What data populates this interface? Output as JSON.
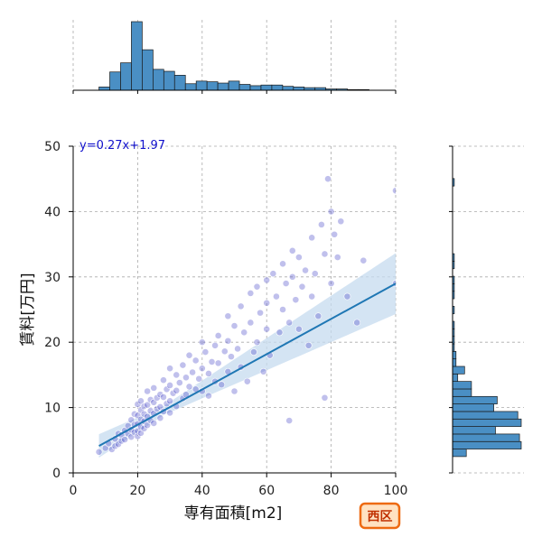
{
  "chart_data": {
    "type": "scatter",
    "xlabel": "専有面積[m2]",
    "ylabel": "賃料[万円]",
    "xlim": [
      0,
      100
    ],
    "ylim": [
      0,
      50
    ],
    "xticks": [
      0,
      20,
      40,
      60,
      80,
      100
    ],
    "yticks": [
      0,
      10,
      20,
      30,
      40,
      50
    ],
    "grid": true,
    "annotation": "y=0.27x+1.97",
    "badge": "西区",
    "regression": {
      "slope": 0.27,
      "intercept": 1.97,
      "x_range": [
        8,
        100
      ]
    },
    "colors": {
      "points": "#5a5acc",
      "line": "#1f77b4",
      "band": "#c6dbef",
      "hist": "#4a8fc4",
      "badge_fill": "#ffe2c2",
      "badge_border": "#ee6a12"
    },
    "series": [
      {
        "values": [
          [
            8,
            3.2
          ],
          [
            10,
            3.8
          ],
          [
            11,
            4.5
          ],
          [
            12,
            3.6
          ],
          [
            13,
            5.2
          ],
          [
            13,
            4.1
          ],
          [
            14,
            6.0
          ],
          [
            14,
            4.4
          ],
          [
            15,
            5.8
          ],
          [
            15,
            4.9
          ],
          [
            16,
            6.5
          ],
          [
            16,
            5.1
          ],
          [
            17,
            7.2
          ],
          [
            17,
            6.0
          ],
          [
            18,
            8.1
          ],
          [
            18,
            6.6
          ],
          [
            18,
            5.5
          ],
          [
            19,
            9.0
          ],
          [
            19,
            7.4
          ],
          [
            19,
            6.2
          ],
          [
            20,
            10.5
          ],
          [
            20,
            8.8
          ],
          [
            20,
            7.5
          ],
          [
            20,
            6.4
          ],
          [
            20,
            5.6
          ],
          [
            21,
            11.0
          ],
          [
            21,
            9.6
          ],
          [
            21,
            8.2
          ],
          [
            21,
            7.0
          ],
          [
            21,
            6.1
          ],
          [
            22,
            10.2
          ],
          [
            22,
            9.0
          ],
          [
            22,
            7.9
          ],
          [
            22,
            6.8
          ],
          [
            23,
            12.5
          ],
          [
            23,
            10.4
          ],
          [
            23,
            8.6
          ],
          [
            23,
            7.3
          ],
          [
            24,
            11.2
          ],
          [
            24,
            9.5
          ],
          [
            24,
            8.0
          ],
          [
            25,
            13.0
          ],
          [
            25,
            10.8
          ],
          [
            25,
            9.1
          ],
          [
            25,
            7.6
          ],
          [
            26,
            11.5
          ],
          [
            26,
            9.8
          ],
          [
            27,
            12.0
          ],
          [
            27,
            10.1
          ],
          [
            27,
            8.4
          ],
          [
            28,
            14.2
          ],
          [
            28,
            11.6
          ],
          [
            28,
            9.4
          ],
          [
            29,
            12.8
          ],
          [
            29,
            10.6
          ],
          [
            30,
            16.0
          ],
          [
            30,
            13.4
          ],
          [
            30,
            11.0
          ],
          [
            30,
            9.2
          ],
          [
            31,
            12.2
          ],
          [
            32,
            15.0
          ],
          [
            32,
            12.6
          ],
          [
            32,
            10.2
          ],
          [
            33,
            13.8
          ],
          [
            34,
            16.5
          ],
          [
            34,
            11.4
          ],
          [
            35,
            14.6
          ],
          [
            35,
            12.0
          ],
          [
            36,
            18.0
          ],
          [
            36,
            13.2
          ],
          [
            37,
            15.4
          ],
          [
            38,
            17.2
          ],
          [
            38,
            12.8
          ],
          [
            39,
            14.4
          ],
          [
            40,
            20.0
          ],
          [
            40,
            16.0
          ],
          [
            40,
            12.5
          ],
          [
            41,
            18.5
          ],
          [
            42,
            15.2
          ],
          [
            42,
            11.8
          ],
          [
            43,
            17.0
          ],
          [
            44,
            19.5
          ],
          [
            44,
            14.0
          ],
          [
            45,
            21.0
          ],
          [
            45,
            16.8
          ],
          [
            46,
            13.5
          ],
          [
            47,
            18.6
          ],
          [
            48,
            24.0
          ],
          [
            48,
            20.2
          ],
          [
            48,
            15.5
          ],
          [
            49,
            17.8
          ],
          [
            50,
            22.5
          ],
          [
            50,
            12.5
          ],
          [
            51,
            19.0
          ],
          [
            52,
            25.5
          ],
          [
            52,
            16.2
          ],
          [
            53,
            21.5
          ],
          [
            54,
            14.0
          ],
          [
            55,
            27.5
          ],
          [
            55,
            23.0
          ],
          [
            56,
            18.5
          ],
          [
            57,
            28.5
          ],
          [
            57,
            20.0
          ],
          [
            58,
            24.5
          ],
          [
            59,
            15.5
          ],
          [
            60,
            29.5
          ],
          [
            60,
            26.0
          ],
          [
            60,
            22.0
          ],
          [
            61,
            18.0
          ],
          [
            62,
            30.5
          ],
          [
            63,
            27.0
          ],
          [
            64,
            21.5
          ],
          [
            65,
            32.0
          ],
          [
            65,
            25.0
          ],
          [
            66,
            29.0
          ],
          [
            67,
            8.0
          ],
          [
            67,
            23.0
          ],
          [
            68,
            34.0
          ],
          [
            68,
            30.0
          ],
          [
            69,
            26.5
          ],
          [
            70,
            33.0
          ],
          [
            70,
            22.0
          ],
          [
            71,
            28.5
          ],
          [
            72,
            31.0
          ],
          [
            73,
            19.5
          ],
          [
            74,
            36.0
          ],
          [
            74,
            27.0
          ],
          [
            75,
            30.5
          ],
          [
            76,
            24.0
          ],
          [
            77,
            38.0
          ],
          [
            78,
            11.5
          ],
          [
            78,
            33.5
          ],
          [
            79,
            45.0
          ],
          [
            80,
            29.0
          ],
          [
            80,
            40.0
          ],
          [
            81,
            36.5
          ],
          [
            82,
            33.0
          ],
          [
            83,
            38.5
          ],
          [
            85,
            27.0
          ],
          [
            88,
            23.0
          ],
          [
            90,
            32.5
          ],
          [
            100,
            43.2
          ],
          [
            100,
            29.0
          ]
        ]
      }
    ],
    "hist_x": {
      "bin_start": 8,
      "bin_width": 3.35,
      "counts": [
        5,
        28,
        42,
        105,
        62,
        32,
        29,
        23,
        10,
        14,
        13,
        11,
        14,
        9,
        7,
        8,
        8,
        6,
        5,
        4,
        4,
        2,
        2,
        1,
        1,
        0,
        0,
        0
      ]
    },
    "hist_y": {
      "bin_start": 2.5,
      "bin_width": 1.15,
      "counts": [
        8,
        40,
        39,
        25,
        40,
        38,
        24,
        26,
        11,
        11,
        3,
        7,
        2,
        2,
        1,
        1,
        1,
        1,
        0,
        1,
        0,
        1,
        1,
        1,
        0,
        1,
        1,
        0,
        0,
        0,
        0,
        0,
        0,
        0,
        0,
        0,
        1,
        0,
        0,
        0
      ]
    }
  }
}
